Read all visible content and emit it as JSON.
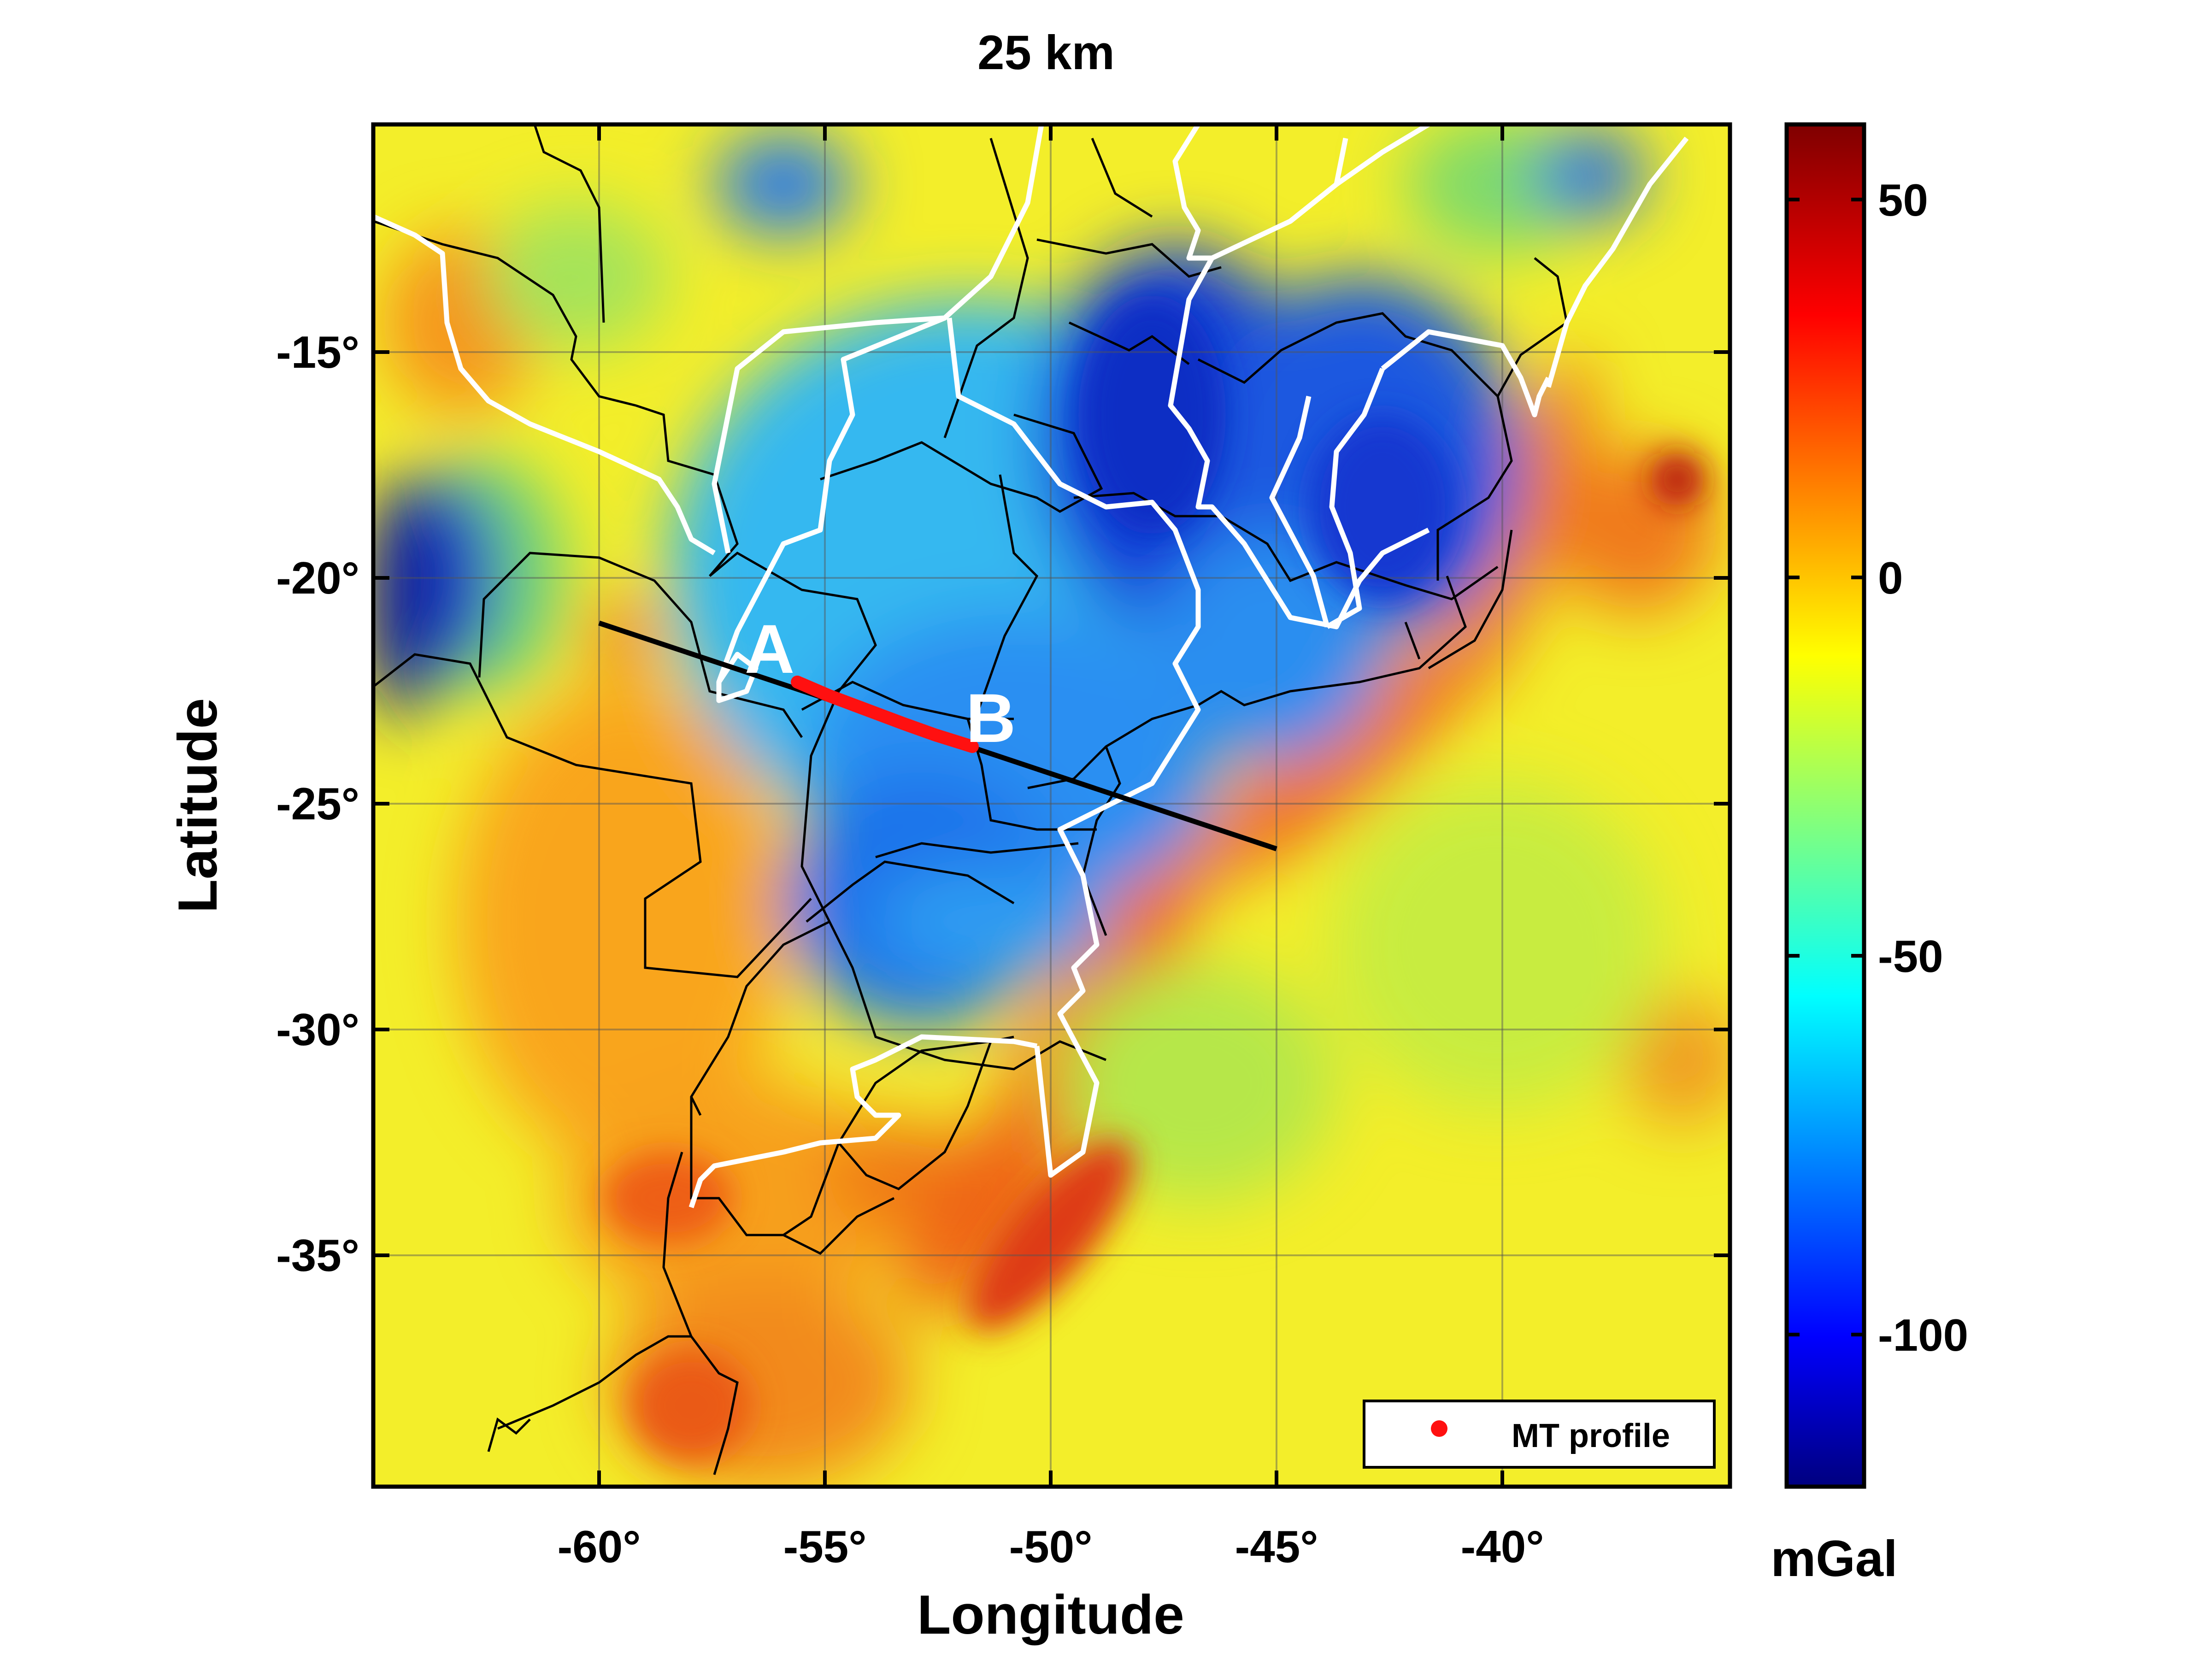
{
  "title": "25 km",
  "xlabel": "Longitude",
  "ylabel": "Latitude",
  "units": "mGal",
  "x_ticks": [
    "-60°",
    "-55°",
    "-50°",
    "-45°",
    "-40°"
  ],
  "y_ticks": [
    "-15°",
    "-20°",
    "-25°",
    "-30°",
    "-35°"
  ],
  "colorbar_ticks": [
    "50",
    "0",
    "-50",
    "-100"
  ],
  "legend": {
    "label": "MT profile"
  },
  "point_labels": {
    "a": "A",
    "b": "B"
  },
  "map_extent": {
    "lon": [
      -65,
      -35
    ],
    "lat": [
      -40,
      -10.5
    ]
  },
  "colorbar_range": [
    -120,
    60
  ],
  "colormap": "jet",
  "colors": {
    "profile_line": "#000000",
    "mt_profile": "#ff1010",
    "terrane_boundaries": "#ffffff",
    "political_borders": "#000000"
  },
  "profile_line": {
    "start": [
      -60,
      -21
    ],
    "end": [
      -45,
      -26
    ]
  },
  "mt_profile": {
    "start": [
      -55.6,
      -22.3
    ],
    "end": [
      -51.6,
      -23.9
    ]
  }
}
